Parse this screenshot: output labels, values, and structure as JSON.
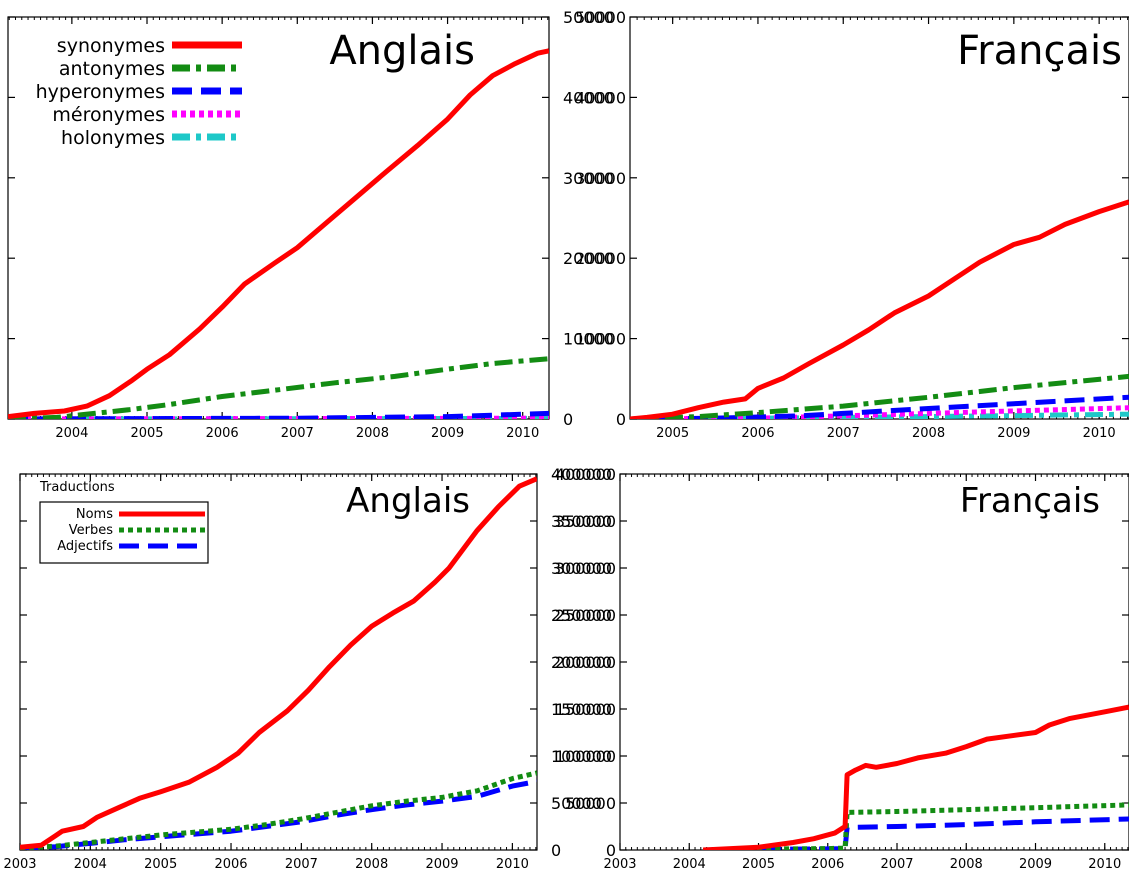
{
  "chart_data": [
    {
      "type": "line",
      "title": "Anglais",
      "xlim": [
        2003.15,
        2010.35
      ],
      "ylim": [
        0,
        50000
      ],
      "x_ticks": [
        2004,
        2005,
        2006,
        2007,
        2008,
        2009,
        2010
      ],
      "y_ticks": [
        0,
        10000,
        20000,
        30000,
        40000,
        50000
      ],
      "legend": {
        "placement": "top-left",
        "title": ""
      },
      "series": [
        {
          "name": "synonymes",
          "color": "#ff0000",
          "style": "solid",
          "x": [
            2003.15,
            2003.5,
            2003.9,
            2004.2,
            2004.5,
            2004.8,
            2005.0,
            2005.3,
            2005.7,
            2006.0,
            2006.3,
            2006.7,
            2007.0,
            2007.4,
            2007.8,
            2008.2,
            2008.6,
            2009.0,
            2009.3,
            2009.6,
            2009.9,
            2010.2,
            2010.35
          ],
          "y": [
            300,
            700,
            1000,
            1600,
            2900,
            4800,
            6200,
            8000,
            11200,
            13900,
            16800,
            19400,
            21300,
            24500,
            27700,
            30900,
            34000,
            37300,
            40300,
            42700,
            44200,
            45500,
            45800
          ]
        },
        {
          "name": "antonymes",
          "color": "#138c13",
          "style": "dashdot",
          "x": [
            2003.15,
            2003.8,
            2004.3,
            2004.8,
            2005.3,
            2006.0,
            2006.8,
            2007.5,
            2008.3,
            2009.0,
            2009.6,
            2010.35
          ],
          "y": [
            0,
            200,
            700,
            1200,
            1800,
            2800,
            3700,
            4500,
            5300,
            6200,
            6900,
            7500
          ]
        },
        {
          "name": "hyperonymes",
          "color": "#0000ff",
          "style": "dashed",
          "x": [
            2003.15,
            2005.0,
            2007.0,
            2009.0,
            2010.35
          ],
          "y": [
            0,
            50,
            100,
            300,
            700
          ]
        },
        {
          "name": "méronymes",
          "color": "#ff00ff",
          "style": "dotted",
          "x": [
            2003.15,
            2010.35
          ],
          "y": [
            0,
            100
          ]
        },
        {
          "name": "holonymes",
          "color": "#1ec8c8",
          "style": "dashdot",
          "x": [
            2003.15,
            2010.35
          ],
          "y": [
            0,
            80
          ]
        }
      ]
    },
    {
      "type": "line",
      "title": "Français",
      "xlim": [
        2004.5,
        2010.35
      ],
      "ylim": [
        0,
        50000
      ],
      "x_ticks": [
        2005,
        2006,
        2007,
        2008,
        2009,
        2010
      ],
      "y_ticks": [
        0,
        10000,
        20000,
        30000,
        40000,
        50000
      ],
      "series": [
        {
          "name": "synonymes",
          "color": "#ff0000",
          "style": "solid",
          "x": [
            2004.5,
            2004.7,
            2005.0,
            2005.3,
            2005.6,
            2005.85,
            2006.0,
            2006.3,
            2006.6,
            2007.0,
            2007.3,
            2007.6,
            2008.0,
            2008.3,
            2008.6,
            2009.0,
            2009.3,
            2009.6,
            2010.0,
            2010.35
          ],
          "y": [
            0,
            200,
            600,
            1400,
            2100,
            2500,
            3800,
            5100,
            6900,
            9200,
            11100,
            13200,
            15300,
            17400,
            19500,
            21700,
            22600,
            24200,
            25800,
            27000
          ]
        },
        {
          "name": "antonymes",
          "color": "#138c13",
          "style": "dashdot",
          "x": [
            2004.5,
            2005.3,
            2006.0,
            2007.0,
            2008.0,
            2009.0,
            2010.35
          ],
          "y": [
            0,
            300,
            800,
            1600,
            2700,
            3900,
            5300
          ]
        },
        {
          "name": "hyperonymes",
          "color": "#0000ff",
          "style": "dashed",
          "x": [
            2004.5,
            2005.5,
            2006.5,
            2007.0,
            2008.0,
            2009.0,
            2010.35
          ],
          "y": [
            0,
            100,
            400,
            700,
            1300,
            1900,
            2700
          ]
        },
        {
          "name": "méronymes",
          "color": "#ff00ff",
          "style": "dotted",
          "x": [
            2004.5,
            2006.0,
            2007.0,
            2008.0,
            2009.0,
            2010.35
          ],
          "y": [
            0,
            100,
            400,
            700,
            1000,
            1400
          ]
        },
        {
          "name": "holonymes",
          "color": "#1ec8c8",
          "style": "dashdot",
          "x": [
            2004.5,
            2006.0,
            2008.0,
            2010.35
          ],
          "y": [
            0,
            100,
            300,
            600
          ]
        }
      ]
    },
    {
      "type": "line",
      "title": "Anglais",
      "xlim": [
        2003.0,
        2010.35
      ],
      "ylim": [
        0,
        400000
      ],
      "x_ticks": [
        2003,
        2004,
        2005,
        2006,
        2007,
        2008,
        2009,
        2010
      ],
      "y_ticks": [
        0,
        50000,
        100000,
        150000,
        200000,
        250000,
        300000,
        350000,
        400000
      ],
      "legend": {
        "placement": "top-left",
        "title": "Traductions"
      },
      "series": [
        {
          "name": "Noms",
          "color": "#ff0000",
          "style": "solid",
          "x": [
            2003.0,
            2003.3,
            2003.5,
            2003.6,
            2003.9,
            2004.1,
            2004.4,
            2004.7,
            2005.0,
            2005.4,
            2005.8,
            2006.1,
            2006.4,
            2006.8,
            2007.1,
            2007.4,
            2007.7,
            2008.0,
            2008.3,
            2008.6,
            2008.9,
            2009.1,
            2009.3,
            2009.5,
            2009.8,
            2010.1,
            2010.35
          ],
          "y": [
            3000,
            5000,
            15000,
            20000,
            25000,
            35000,
            45000,
            55000,
            62000,
            72000,
            88000,
            103000,
            125000,
            148000,
            170000,
            195000,
            218000,
            238000,
            252000,
            265000,
            285000,
            300000,
            320000,
            340000,
            365000,
            387000,
            395000
          ]
        },
        {
          "name": "Verbes",
          "color": "#138c13",
          "style": "dotted",
          "x": [
            2003.0,
            2003.5,
            2004.0,
            2004.5,
            2005.0,
            2005.5,
            2006.0,
            2006.5,
            2007.0,
            2007.5,
            2008.0,
            2008.5,
            2009.0,
            2009.5,
            2010.0,
            2010.35
          ],
          "y": [
            2000,
            4000,
            8000,
            12000,
            16000,
            19000,
            22000,
            27000,
            33000,
            40000,
            47000,
            52000,
            56000,
            63000,
            76000,
            82000
          ]
        },
        {
          "name": "Adjectifs",
          "color": "#0000ff",
          "style": "dashed",
          "x": [
            2003.0,
            2003.5,
            2004.0,
            2004.5,
            2005.0,
            2005.5,
            2006.0,
            2006.5,
            2007.0,
            2007.5,
            2008.0,
            2008.5,
            2009.0,
            2009.5,
            2010.0,
            2010.35
          ],
          "y": [
            1500,
            3500,
            7000,
            11000,
            14000,
            17000,
            20000,
            25000,
            30000,
            37000,
            43000,
            48000,
            52000,
            57000,
            68000,
            73000
          ]
        }
      ]
    },
    {
      "type": "line",
      "title": "Français",
      "xlim": [
        2003.0,
        2010.35
      ],
      "ylim": [
        0,
        400000
      ],
      "x_ticks": [
        2003,
        2004,
        2005,
        2006,
        2007,
        2008,
        2009,
        2010
      ],
      "y_ticks": [
        0,
        50000,
        100000,
        150000,
        200000,
        250000,
        300000,
        350000,
        400000
      ],
      "series": [
        {
          "name": "Noms",
          "color": "#ff0000",
          "style": "solid",
          "x": [
            2004.2,
            2005.0,
            2005.5,
            2005.8,
            2006.1,
            2006.25,
            2006.28,
            2006.4,
            2006.55,
            2006.7,
            2007.0,
            2007.3,
            2007.7,
            2008.0,
            2008.3,
            2008.7,
            2009.0,
            2009.2,
            2009.5,
            2010.0,
            2010.35
          ],
          "y": [
            0,
            3000,
            8000,
            12000,
            18000,
            25000,
            80000,
            85000,
            90000,
            88000,
            92000,
            98000,
            103000,
            110000,
            118000,
            122000,
            125000,
            133000,
            140000,
            147000,
            152000
          ]
        },
        {
          "name": "Verbes",
          "color": "#138c13",
          "style": "dotted",
          "x": [
            2004.2,
            2005.0,
            2006.0,
            2006.25,
            2006.28,
            2007.0,
            2008.0,
            2009.0,
            2010.35
          ],
          "y": [
            0,
            1000,
            1500,
            2000,
            40000,
            41000,
            43000,
            45000,
            48000
          ]
        },
        {
          "name": "Adjectifs",
          "color": "#0000ff",
          "style": "dashed",
          "x": [
            2004.2,
            2005.0,
            2006.0,
            2006.25,
            2006.28,
            2007.0,
            2008.0,
            2009.0,
            2010.35
          ],
          "y": [
            0,
            800,
            1200,
            1500,
            24000,
            25000,
            27000,
            30000,
            33000
          ]
        }
      ]
    }
  ]
}
